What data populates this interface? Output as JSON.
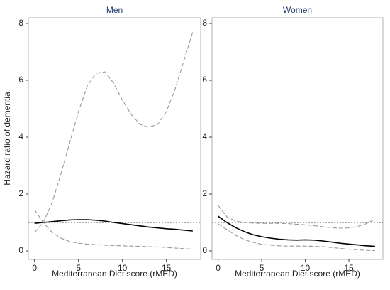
{
  "chart_data": [
    {
      "type": "line",
      "title": "Men",
      "xlabel": "Mediterranean Diet score (rMED)",
      "ylabel": "Hazard ratio of dementia",
      "x": [
        0,
        1,
        2,
        3,
        4,
        5,
        6,
        7,
        8,
        9,
        10,
        11,
        12,
        13,
        14,
        15,
        16,
        17,
        18
      ],
      "xlim": [
        -0.7,
        18.9
      ],
      "xticks": [
        0,
        5,
        10,
        15
      ],
      "ylim": [
        -0.3,
        8.2
      ],
      "yticks": [
        0,
        2,
        4,
        6,
        8
      ],
      "reference_line": 1,
      "series": [
        {
          "color": "#000000",
          "style": "solid",
          "values": [
            0.97,
            1.0,
            1.03,
            1.06,
            1.09,
            1.1,
            1.1,
            1.08,
            1.05,
            1.0,
            0.96,
            0.92,
            0.88,
            0.84,
            0.81,
            0.78,
            0.76,
            0.73,
            0.7
          ]
        },
        {
          "color": "#999999",
          "style": "dashed",
          "values": [
            0.65,
            1.0,
            1.7,
            2.7,
            3.8,
            4.9,
            5.8,
            6.25,
            6.3,
            5.9,
            5.3,
            4.8,
            4.45,
            4.35,
            4.45,
            4.9,
            5.7,
            6.7,
            7.7
          ]
        },
        {
          "color": "#999999",
          "style": "dashed",
          "values": [
            1.45,
            1.0,
            0.65,
            0.45,
            0.33,
            0.27,
            0.24,
            0.22,
            0.2,
            0.19,
            0.18,
            0.17,
            0.16,
            0.15,
            0.14,
            0.12,
            0.1,
            0.08,
            0.06
          ]
        }
      ]
    },
    {
      "type": "line",
      "title": "Women",
      "xlabel": "Mediterranean Diet score (rMED)",
      "x": [
        0,
        1,
        2,
        3,
        4,
        5,
        6,
        7,
        8,
        9,
        10,
        11,
        12,
        13,
        14,
        15,
        16,
        17,
        18
      ],
      "xlim": [
        -0.7,
        18.9
      ],
      "xticks": [
        0,
        5,
        10,
        15
      ],
      "ylim": [
        -0.3,
        8.2
      ],
      "yticks": [
        0,
        2,
        4,
        6,
        8
      ],
      "reference_line": 1,
      "series": [
        {
          "color": "#000000",
          "style": "solid",
          "values": [
            1.22,
            1.0,
            0.82,
            0.68,
            0.57,
            0.5,
            0.45,
            0.41,
            0.39,
            0.38,
            0.39,
            0.38,
            0.35,
            0.31,
            0.27,
            0.24,
            0.21,
            0.18,
            0.16
          ]
        },
        {
          "color": "#999999",
          "style": "dashed",
          "values": [
            1.6,
            1.2,
            1.05,
            1.0,
            0.98,
            0.97,
            0.97,
            0.97,
            0.96,
            0.94,
            0.92,
            0.89,
            0.85,
            0.82,
            0.8,
            0.81,
            0.86,
            0.96,
            1.12
          ]
        },
        {
          "color": "#999999",
          "style": "dashed",
          "values": [
            0.95,
            0.75,
            0.55,
            0.4,
            0.3,
            0.23,
            0.2,
            0.18,
            0.17,
            0.17,
            0.17,
            0.16,
            0.15,
            0.12,
            0.09,
            0.06,
            0.04,
            0.02,
            0.01
          ]
        }
      ]
    }
  ]
}
